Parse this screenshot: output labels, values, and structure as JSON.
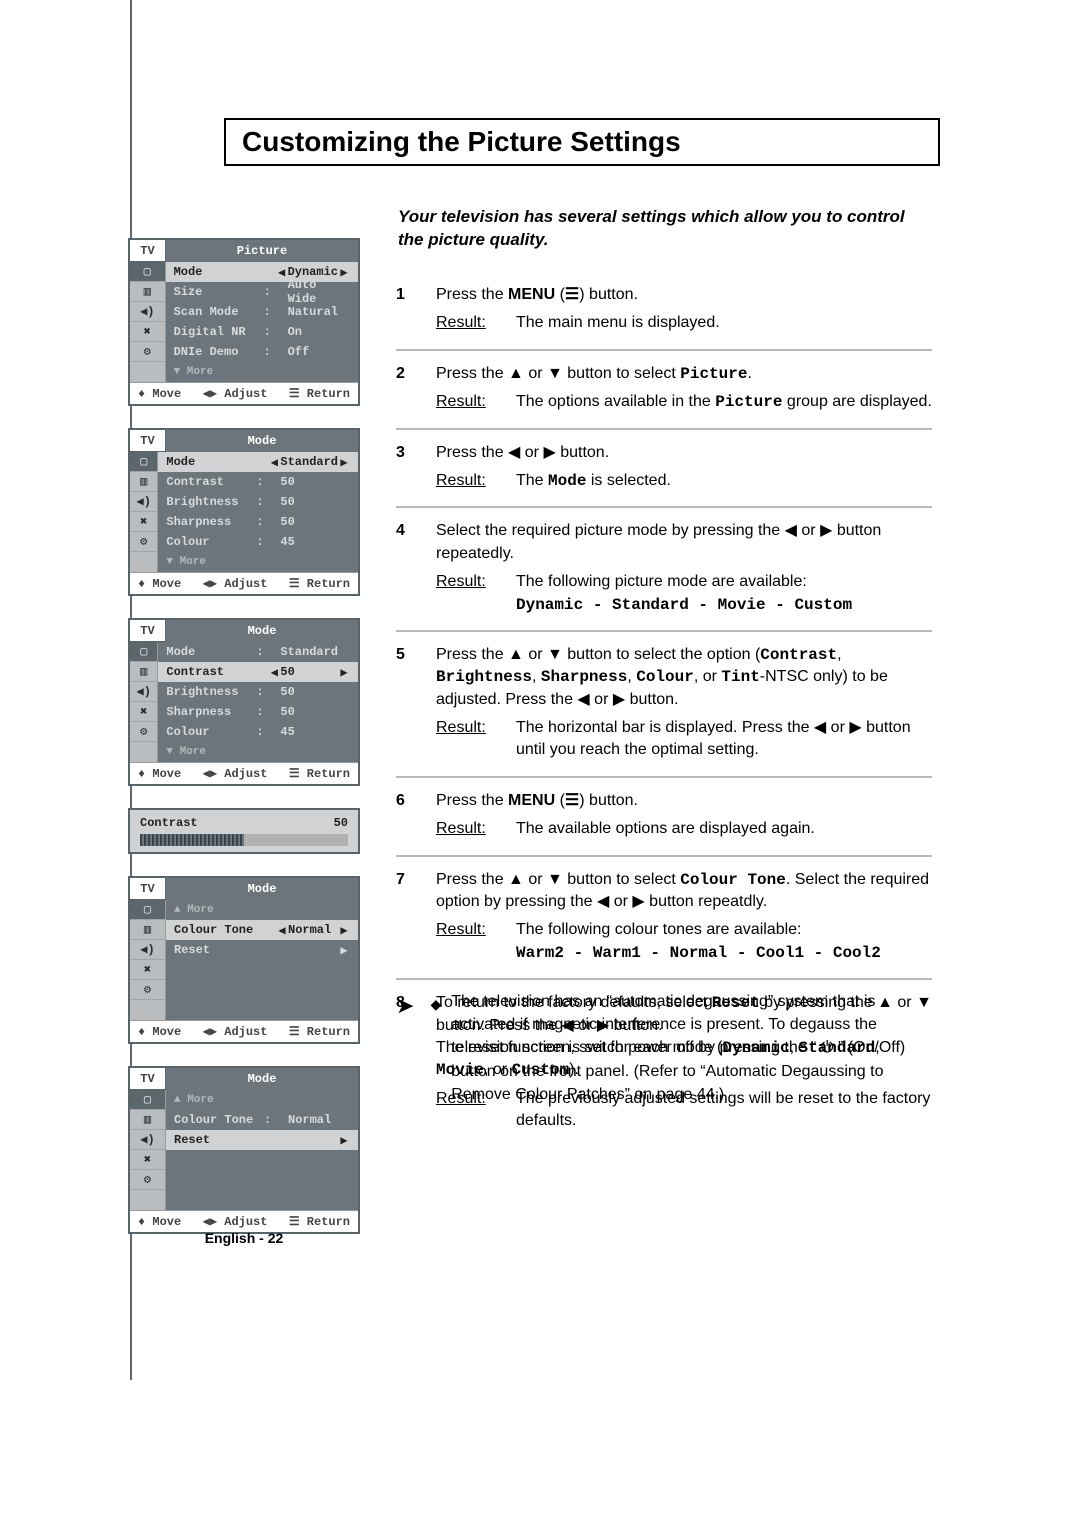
{
  "colors": {
    "grid_separator": "#b8b8b8",
    "menu_bg": "#6b757b",
    "menu_selected_bg": "#d0d2d4",
    "menu_border": "#58636a",
    "icon_col_bg": "#b9bdc0"
  },
  "title": "Customizing the Picture Settings",
  "intro": "Your television has several settings which allow you to control the picture quality.",
  "footer": "English - 22",
  "glyph": {
    "up": "▲",
    "down": "▼",
    "left": "◀",
    "right": "▶",
    "updown": "♦",
    "leftright": "◀▶",
    "return_icon": "☰",
    "menu_icon": "☰",
    "power": "⏻",
    "note_arrow": "➤",
    "bullet": "◆"
  },
  "menu_footer": {
    "move": "Move",
    "adjust": "Adjust",
    "return": "Return"
  },
  "icons": [
    "▢",
    "▥",
    "◀)",
    "✖",
    "⚙"
  ],
  "menus": [
    {
      "tv": "TV",
      "title": "Picture",
      "selected_icon": 0,
      "rows": [
        {
          "label": "Mode",
          "sep": "",
          "value": "Dynamic",
          "selected": true,
          "arrows": true
        },
        {
          "label": "Size",
          "sep": ":",
          "value": "Auto Wide"
        },
        {
          "label": "Scan Mode",
          "sep": ":",
          "value": "Natural"
        },
        {
          "label": "Digital NR",
          "sep": ":",
          "value": "On"
        },
        {
          "label": "DNIe Demo",
          "sep": ":",
          "value": "Off"
        },
        {
          "label": "▼ More",
          "more": true
        }
      ]
    },
    {
      "tv": "TV",
      "title": "Mode",
      "selected_icon": 0,
      "rows": [
        {
          "label": "Mode",
          "sep": "",
          "value": "Standard",
          "selected": true,
          "arrows": true
        },
        {
          "label": "Contrast",
          "sep": ":",
          "value": "50"
        },
        {
          "label": "Brightness",
          "sep": ":",
          "value": "50"
        },
        {
          "label": "Sharpness",
          "sep": ":",
          "value": "50"
        },
        {
          "label": "Colour",
          "sep": ":",
          "value": "45"
        },
        {
          "label": "▼ More",
          "more": true
        }
      ]
    },
    {
      "tv": "TV",
      "title": "Mode",
      "selected_icon": 0,
      "rows": [
        {
          "label": "Mode",
          "sep": ":",
          "value": "Standard"
        },
        {
          "label": "Contrast",
          "sep": "",
          "value": "50",
          "selected": true,
          "arrows": true
        },
        {
          "label": "Brightness",
          "sep": ":",
          "value": "50"
        },
        {
          "label": "Sharpness",
          "sep": ":",
          "value": "50"
        },
        {
          "label": "Colour",
          "sep": ":",
          "value": "45"
        },
        {
          "label": "▼ More",
          "more": true
        }
      ]
    }
  ],
  "contrast_bar": {
    "label": "Contrast",
    "value": "50",
    "fill_pct": 50
  },
  "menus2": [
    {
      "tv": "TV",
      "title": "Mode",
      "selected_icon": 0,
      "rows": [
        {
          "label": "▲ More",
          "more": true
        },
        {
          "label": "Colour Tone",
          "sep": "",
          "value": "Normal",
          "selected": true,
          "arrows": true
        },
        {
          "label": "Reset",
          "sep": " ",
          "value": " ",
          "right_only": true
        },
        {
          "label": " ",
          "sep": " ",
          "value": " "
        },
        {
          "label": " ",
          "sep": " ",
          "value": " "
        },
        {
          "label": " ",
          "sep": " ",
          "value": " "
        }
      ]
    },
    {
      "tv": "TV",
      "title": "Mode",
      "selected_icon": 0,
      "rows": [
        {
          "label": "▲ More",
          "more": true
        },
        {
          "label": "Colour Tone",
          "sep": ":",
          "value": "Normal"
        },
        {
          "label": "Reset",
          "sep": " ",
          "value": " ",
          "selected": true,
          "right_only": true
        },
        {
          "label": " ",
          "sep": " ",
          "value": " "
        },
        {
          "label": " ",
          "sep": " ",
          "value": " "
        },
        {
          "label": " ",
          "sep": " ",
          "value": " "
        }
      ]
    }
  ],
  "steps": [
    {
      "n": "1",
      "lines": [
        {
          "html": "Press the <b>MENU</b> (<span class='mono'>☰</span>) button."
        }
      ],
      "result": "The main menu is displayed."
    },
    {
      "n": "2",
      "lines": [
        {
          "html": "Press the ▲ or ▼ button to select <span class='mono'>Picture</span>."
        }
      ],
      "result_html": "The options available in the <span class='mono'>Picture</span> group are displayed."
    },
    {
      "n": "3",
      "lines": [
        {
          "html": "Press the ◀ or ▶ button."
        }
      ],
      "result_html": "The <span class='mono'>Mode</span> is selected."
    },
    {
      "n": "4",
      "lines": [
        {
          "html": "Select the required picture mode by pressing the ◀ or ▶ button repeatedly."
        }
      ],
      "result_html": "The following picture mode are available:<br><span class='mono'>Dynamic - Standard - Movie - Custom</span>"
    },
    {
      "n": "5",
      "lines": [
        {
          "html": "Press the ▲ or ▼ button to select the option (<span class='mono'>Contrast</span>, <span class='mono'>Brightness</span>, <span class='mono'>Sharpness</span>, <span class='mono'>Colour</span>, or <span class='mono'>Tint</span>-NTSC only) to be adjusted. Press the ◀ or ▶ button."
        }
      ],
      "result_html": "The horizontal bar is displayed. Press the ◀ or ▶ button until you reach the optimal setting."
    },
    {
      "n": "6",
      "lines": [
        {
          "html": "Press the <b>MENU</b> (<span class='mono'>☰</span>) button."
        }
      ],
      "result": "The available options are displayed again."
    },
    {
      "n": "7",
      "lines": [
        {
          "html": "Press the ▲ or ▼ button to select <span class='mono'>Colour Tone</span>. Select the required option by pressing the ◀ or ▶ button repeatdly."
        }
      ],
      "result_html": "The following colour tones are available:<br><span class='mono'>Warm2 - Warm1 - Normal - Cool1 - Cool2</span>"
    },
    {
      "n": "8",
      "lines": [
        {
          "html": "To return to the factory defaults, select <span class='mono'>Reset</span> by pressing the ▲ or ▼ button. Press the ◀ or ▶ button.<br>The reset function is set for each mode (<span class='mono'>Dynamic</span>, <span class='mono'>Standard</span>, <span class='mono'>Movie</span>, or <span class='mono'>Custom</span>)."
        }
      ],
      "result": "The previously adjusted settings will be reset to the factory defaults."
    }
  ],
  "note": "The television has an “automatic degaussing” system that is activated if magnetic interference is present. To degauss the television screen, switch power off by pressing the “ ⏻ ” (On/Off) button on the front panel. (Refer to “Automatic Degaussing to Remove Colour Patches” on page 44.)"
}
